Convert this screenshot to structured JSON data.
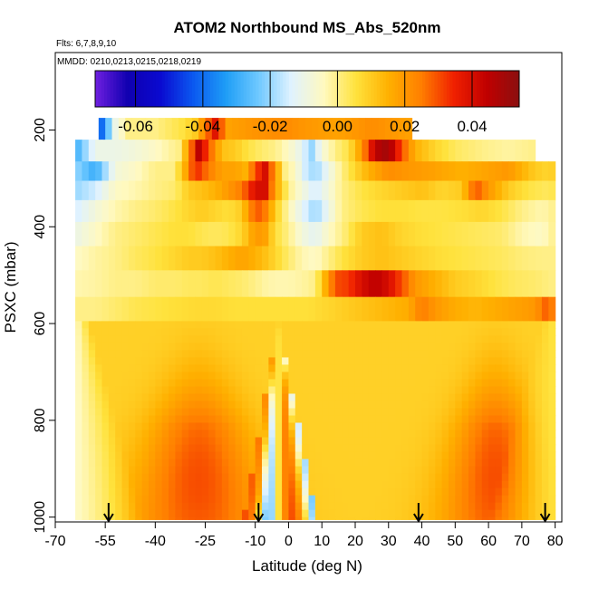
{
  "chart_data": {
    "type": "heatmap",
    "title": "ATOM2 Northbound MS_Abs_520nm",
    "flights_text": "Flts: 6,7,8,9,10",
    "dates_text": "MMDD: 0210,0213,0215,0218,0219",
    "xlabel": "Latitude (deg N)",
    "ylabel": "PSXC (mbar)",
    "xlim": [
      -70,
      82
    ],
    "ylim": [
      1010,
      40
    ],
    "x_ticks": [
      -70,
      -55,
      -40,
      -25,
      -10,
      0,
      10,
      20,
      30,
      40,
      50,
      60,
      70,
      80
    ],
    "y_ticks": [
      200,
      400,
      600,
      800,
      1000
    ],
    "colorbar": {
      "range": [
        -0.072,
        0.054
      ],
      "ticks": [
        -0.06,
        -0.04,
        -0.02,
        0.0,
        0.02,
        0.04
      ],
      "tick_labels": [
        "-0.06",
        "-0.04",
        "-0.02",
        "0.00",
        "0.02",
        "0.04"
      ],
      "colors": [
        "#6f1fe0",
        "#1000b0",
        "#0a0ad0",
        "#0b58f0",
        "#1e9df6",
        "#6ec8ff",
        "#dff2ff",
        "#fff9c0",
        "#ffe23c",
        "#ffb000",
        "#ff7e00",
        "#f02000",
        "#c00000",
        "#8a1010"
      ]
    },
    "arrows_latitude": [
      -54,
      -9,
      39,
      77
    ],
    "pressure_bands": [
      {
        "p_top": 175,
        "p_bot": 220,
        "lat_min": -57,
        "lat_max": 37,
        "values": [
          [
            -57,
            -0.05
          ],
          [
            -55,
            -0.03
          ],
          [
            -52,
            -0.01
          ],
          [
            -48,
            0.0
          ],
          [
            -40,
            0.0
          ],
          [
            -32,
            0.005
          ],
          [
            -28,
            0.01
          ],
          [
            -22,
            0.038
          ],
          [
            -18,
            0.018
          ],
          [
            -12,
            0.02
          ],
          [
            -5,
            0.022
          ],
          [
            0,
            0.022
          ],
          [
            5,
            0.02
          ],
          [
            15,
            0.018
          ],
          [
            25,
            0.022
          ],
          [
            37,
            0.018
          ]
        ]
      },
      {
        "p_top": 220,
        "p_bot": 265,
        "lat_min": -64,
        "lat_max": 74,
        "values": [
          [
            -64,
            -0.03
          ],
          [
            -58,
            -0.01
          ],
          [
            -52,
            -0.01
          ],
          [
            -46,
            -0.008
          ],
          [
            -40,
            -0.005
          ],
          [
            -36,
            -0.002
          ],
          [
            -33,
            0.0
          ],
          [
            -30,
            0.02
          ],
          [
            -27,
            0.045
          ],
          [
            -24,
            0.03
          ],
          [
            -20,
            0.012
          ],
          [
            -16,
            0.01
          ],
          [
            -12,
            0.005
          ],
          [
            -8,
            0.002
          ],
          [
            -4,
            0.0
          ],
          [
            0,
            -0.005
          ],
          [
            3,
            -0.01
          ],
          [
            7,
            -0.02
          ],
          [
            10,
            -0.008
          ],
          [
            14,
            0.0
          ],
          [
            18,
            0.005
          ],
          [
            22,
            0.02
          ],
          [
            26,
            0.045
          ],
          [
            30,
            0.05
          ],
          [
            34,
            0.03
          ],
          [
            38,
            0.015
          ],
          [
            44,
            0.008
          ],
          [
            50,
            0.003
          ],
          [
            58,
            0.0
          ],
          [
            66,
            -0.002
          ],
          [
            74,
            0.0
          ]
        ]
      },
      {
        "p_top": 265,
        "p_bot": 305,
        "lat_min": -64,
        "lat_max": 80,
        "values": [
          [
            -64,
            -0.02
          ],
          [
            -58,
            -0.03
          ],
          [
            -52,
            -0.008
          ],
          [
            -46,
            -0.005
          ],
          [
            -40,
            0.0
          ],
          [
            -35,
            0.0
          ],
          [
            -32,
            0.01
          ],
          [
            -28,
            0.035
          ],
          [
            -24,
            0.025
          ],
          [
            -20,
            0.018
          ],
          [
            -16,
            0.018
          ],
          [
            -13,
            0.015
          ],
          [
            -10,
            0.03
          ],
          [
            -7,
            0.04
          ],
          [
            -4,
            0.02
          ],
          [
            -1,
            0.0
          ],
          [
            2,
            -0.005
          ],
          [
            5,
            -0.015
          ],
          [
            8,
            -0.02
          ],
          [
            12,
            -0.01
          ],
          [
            16,
            0.0
          ],
          [
            20,
            0.008
          ],
          [
            24,
            0.015
          ],
          [
            30,
            0.022
          ],
          [
            36,
            0.02
          ],
          [
            44,
            0.018
          ],
          [
            52,
            0.015
          ],
          [
            60,
            0.018
          ],
          [
            66,
            0.02
          ],
          [
            70,
            0.015
          ],
          [
            74,
            0.01
          ],
          [
            78,
            0.008
          ],
          [
            80,
            0.01
          ]
        ]
      },
      {
        "p_top": 305,
        "p_bot": 345,
        "lat_min": -64,
        "lat_max": 80,
        "values": [
          [
            -64,
            -0.02
          ],
          [
            -58,
            -0.015
          ],
          [
            -52,
            -0.005
          ],
          [
            -46,
            -0.003
          ],
          [
            -40,
            0.0
          ],
          [
            -34,
            0.002
          ],
          [
            -30,
            0.01
          ],
          [
            -26,
            0.012
          ],
          [
            -22,
            0.015
          ],
          [
            -18,
            0.02
          ],
          [
            -14,
            0.025
          ],
          [
            -10,
            0.04
          ],
          [
            -7,
            0.04
          ],
          [
            -4,
            0.018
          ],
          [
            0,
            0.0
          ],
          [
            4,
            -0.008
          ],
          [
            8,
            -0.015
          ],
          [
            12,
            -0.008
          ],
          [
            16,
            0.0
          ],
          [
            22,
            0.005
          ],
          [
            28,
            0.008
          ],
          [
            34,
            0.01
          ],
          [
            40,
            0.012
          ],
          [
            46,
            0.008
          ],
          [
            52,
            0.01
          ],
          [
            56,
            0.03
          ],
          [
            60,
            0.02
          ],
          [
            66,
            0.01
          ],
          [
            72,
            0.005
          ],
          [
            78,
            0.003
          ],
          [
            80,
            0.005
          ]
        ]
      },
      {
        "p_top": 345,
        "p_bot": 390,
        "lat_min": -64,
        "lat_max": 80,
        "values": [
          [
            -64,
            -0.015
          ],
          [
            -58,
            -0.008
          ],
          [
            -52,
            -0.003
          ],
          [
            -46,
            0.0
          ],
          [
            -40,
            0.002
          ],
          [
            -34,
            0.005
          ],
          [
            -30,
            0.008
          ],
          [
            -26,
            0.01
          ],
          [
            -22,
            0.008
          ],
          [
            -18,
            0.006
          ],
          [
            -14,
            0.01
          ],
          [
            -10,
            0.03
          ],
          [
            -7,
            0.025
          ],
          [
            -4,
            0.01
          ],
          [
            0,
            -0.003
          ],
          [
            4,
            -0.012
          ],
          [
            8,
            -0.02
          ],
          [
            12,
            -0.01
          ],
          [
            16,
            0.0
          ],
          [
            22,
            0.004
          ],
          [
            28,
            0.006
          ],
          [
            34,
            0.006
          ],
          [
            40,
            0.005
          ],
          [
            46,
            0.005
          ],
          [
            52,
            0.006
          ],
          [
            58,
            0.008
          ],
          [
            64,
            0.005
          ],
          [
            70,
            0.0
          ],
          [
            76,
            -0.003
          ],
          [
            80,
            0.0
          ]
        ]
      },
      {
        "p_top": 390,
        "p_bot": 440,
        "lat_min": -64,
        "lat_max": 80,
        "values": [
          [
            -64,
            -0.01
          ],
          [
            -58,
            -0.005
          ],
          [
            -52,
            0.0
          ],
          [
            -46,
            0.002
          ],
          [
            -40,
            0.004
          ],
          [
            -34,
            0.006
          ],
          [
            -30,
            0.006
          ],
          [
            -26,
            0.004
          ],
          [
            -22,
            0.003
          ],
          [
            -18,
            0.004
          ],
          [
            -14,
            0.008
          ],
          [
            -10,
            0.02
          ],
          [
            -7,
            0.018
          ],
          [
            -4,
            0.006
          ],
          [
            0,
            0.0
          ],
          [
            4,
            -0.008
          ],
          [
            8,
            -0.012
          ],
          [
            12,
            -0.005
          ],
          [
            16,
            0.0
          ],
          [
            22,
            0.01
          ],
          [
            28,
            0.012
          ],
          [
            34,
            0.008
          ],
          [
            40,
            0.006
          ],
          [
            46,
            0.005
          ],
          [
            52,
            0.004
          ],
          [
            58,
            0.003
          ],
          [
            64,
            0.002
          ],
          [
            70,
            -0.003
          ],
          [
            76,
            -0.005
          ],
          [
            80,
            0.0
          ]
        ]
      },
      {
        "p_top": 440,
        "p_bot": 490,
        "lat_min": -64,
        "lat_max": 80,
        "values": [
          [
            -64,
            -0.005
          ],
          [
            -58,
            -0.002
          ],
          [
            -52,
            0.0
          ],
          [
            -46,
            0.003
          ],
          [
            -40,
            0.005
          ],
          [
            -34,
            0.008
          ],
          [
            -30,
            0.01
          ],
          [
            -26,
            0.01
          ],
          [
            -22,
            0.012
          ],
          [
            -18,
            0.015
          ],
          [
            -14,
            0.018
          ],
          [
            -10,
            0.015
          ],
          [
            -7,
            0.012
          ],
          [
            -4,
            0.008
          ],
          [
            0,
            0.002
          ],
          [
            4,
            -0.003
          ],
          [
            8,
            -0.005
          ],
          [
            12,
            0.0
          ],
          [
            16,
            0.005
          ],
          [
            22,
            0.01
          ],
          [
            28,
            0.012
          ],
          [
            34,
            0.01
          ],
          [
            40,
            0.008
          ],
          [
            46,
            0.006
          ],
          [
            52,
            0.005
          ],
          [
            58,
            0.004
          ],
          [
            64,
            0.003
          ],
          [
            70,
            0.001
          ],
          [
            76,
            0.0
          ],
          [
            80,
            0.0
          ]
        ]
      },
      {
        "p_top": 490,
        "p_bot": 545,
        "lat_min": -64,
        "lat_max": 80,
        "values": [
          [
            -64,
            -0.003
          ],
          [
            -58,
            -0.002
          ],
          [
            -52,
            0.0
          ],
          [
            -46,
            0.0
          ],
          [
            -40,
            0.002
          ],
          [
            -34,
            0.002
          ],
          [
            -30,
            0.003
          ],
          [
            -26,
            0.003
          ],
          [
            -22,
            0.004
          ],
          [
            -18,
            0.003
          ],
          [
            -14,
            0.002
          ],
          [
            -10,
            0.0
          ],
          [
            -7,
            -0.002
          ],
          [
            -4,
            -0.003
          ],
          [
            0,
            -0.003
          ],
          [
            4,
            -0.002
          ],
          [
            8,
            0.0
          ],
          [
            10,
            0.01
          ],
          [
            14,
            0.03
          ],
          [
            18,
            0.032
          ],
          [
            22,
            0.04
          ],
          [
            26,
            0.045
          ],
          [
            30,
            0.04
          ],
          [
            34,
            0.03
          ],
          [
            38,
            0.02
          ],
          [
            44,
            0.015
          ],
          [
            50,
            0.01
          ],
          [
            56,
            0.008
          ],
          [
            62,
            0.005
          ],
          [
            68,
            0.003
          ],
          [
            74,
            0.002
          ],
          [
            80,
            0.0
          ]
        ]
      },
      {
        "p_top": 545,
        "p_bot": 595,
        "lat_min": -64,
        "lat_max": 80,
        "values": [
          [
            -64,
            0.0
          ],
          [
            -58,
            0.0
          ],
          [
            -52,
            0.002
          ],
          [
            -46,
            0.004
          ],
          [
            -40,
            0.005
          ],
          [
            -34,
            0.006
          ],
          [
            -28,
            0.007
          ],
          [
            -22,
            0.007
          ],
          [
            -16,
            0.006
          ],
          [
            -10,
            0.006
          ],
          [
            -4,
            0.006
          ],
          [
            0,
            0.006
          ],
          [
            6,
            0.006
          ],
          [
            12,
            0.008
          ],
          [
            18,
            0.01
          ],
          [
            24,
            0.012
          ],
          [
            30,
            0.014
          ],
          [
            36,
            0.016
          ],
          [
            40,
            0.025
          ],
          [
            44,
            0.02
          ],
          [
            50,
            0.016
          ],
          [
            56,
            0.014
          ],
          [
            62,
            0.016
          ],
          [
            68,
            0.018
          ],
          [
            74,
            0.02
          ],
          [
            78,
            0.03
          ],
          [
            80,
            0.02
          ]
        ]
      }
    ],
    "lower_field": {
      "p_top": 595,
      "p_bot": 1005,
      "lat_min": -64,
      "lat_max": 80,
      "background": 0.009,
      "lobes": [
        {
          "center_lat": -27,
          "center_p": 930,
          "width_lat": 17,
          "value": 0.03
        },
        {
          "center_lat": 62,
          "center_p": 920,
          "width_lat": 14,
          "value": 0.03
        }
      ],
      "cold_edges": [
        {
          "edge": "left",
          "lat": -64,
          "value": -0.008
        },
        {
          "edge": "right",
          "lat": 80,
          "value": 0.004
        }
      ],
      "central_wedge": {
        "apex_lat": -3,
        "apex_p": 600,
        "base_lat_min": -12,
        "base_lat_max": 10,
        "value_blue": -0.025,
        "value_red": 0.03
      }
    }
  }
}
